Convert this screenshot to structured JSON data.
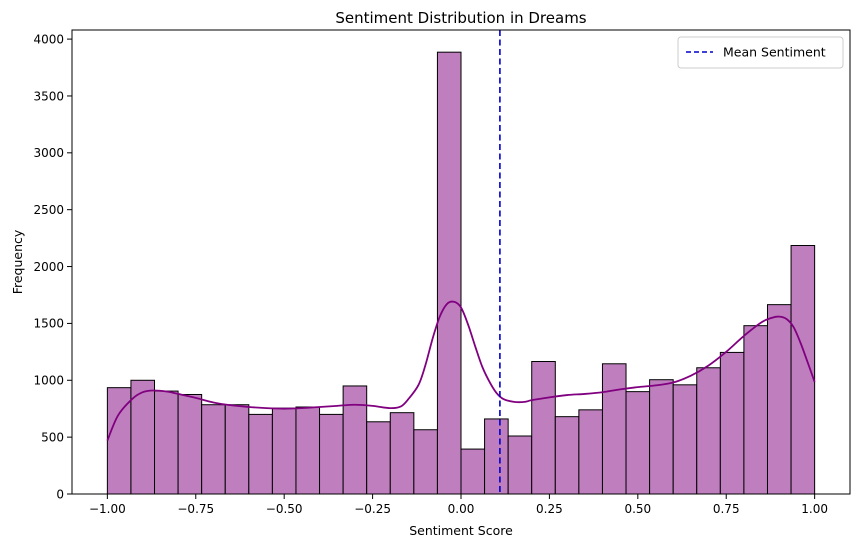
{
  "chart_data": {
    "type": "bar",
    "title": "Sentiment Distribution in Dreams",
    "xlabel": "Sentiment Score",
    "ylabel": "Frequency",
    "xlim": [
      -1.1,
      1.1
    ],
    "ylim": [
      0,
      4080
    ],
    "xticks": [
      -1.0,
      -0.75,
      -0.5,
      -0.25,
      0.0,
      0.25,
      0.5,
      0.75,
      1.0
    ],
    "xtick_labels": [
      "−1.00",
      "−0.75",
      "−0.50",
      "−0.25",
      "0.00",
      "0.25",
      "0.50",
      "0.75",
      "1.00"
    ],
    "yticks": [
      0,
      500,
      1000,
      1500,
      2000,
      2500,
      3000,
      3500,
      4000
    ],
    "ytick_labels": [
      "0",
      "500",
      "1000",
      "1500",
      "2000",
      "2500",
      "3000",
      "3500",
      "4000"
    ],
    "bin_start": -1.0,
    "bin_end": 1.0,
    "values": [
      935,
      1000,
      905,
      875,
      785,
      785,
      700,
      755,
      765,
      700,
      950,
      635,
      715,
      565,
      3885,
      395,
      660,
      510,
      1165,
      680,
      740,
      1145,
      900,
      1005,
      960,
      1110,
      1245,
      1480,
      1665,
      2185
    ],
    "bar_color": "#bf7fbf",
    "bar_edge_color": "#000000",
    "kde": {
      "color": "#800080",
      "x": [
        -1.0,
        -0.97,
        -0.93,
        -0.9,
        -0.87,
        -0.83,
        -0.8,
        -0.75,
        -0.7,
        -0.65,
        -0.6,
        -0.55,
        -0.5,
        -0.45,
        -0.4,
        -0.35,
        -0.3,
        -0.25,
        -0.2,
        -0.17,
        -0.15,
        -0.12,
        -0.1,
        -0.08,
        -0.06,
        -0.04,
        -0.02,
        0.0,
        0.02,
        0.04,
        0.06,
        0.08,
        0.1,
        0.12,
        0.15,
        0.18,
        0.2,
        0.25,
        0.3,
        0.35,
        0.4,
        0.45,
        0.5,
        0.55,
        0.6,
        0.65,
        0.7,
        0.75,
        0.8,
        0.85,
        0.88,
        0.9,
        0.92,
        0.94,
        0.96,
        0.98,
        1.0
      ],
      "y": [
        470,
        690,
        835,
        895,
        910,
        900,
        880,
        845,
        805,
        780,
        765,
        755,
        750,
        755,
        765,
        775,
        785,
        775,
        755,
        770,
        830,
        960,
        1140,
        1370,
        1560,
        1670,
        1690,
        1640,
        1490,
        1300,
        1120,
        990,
        890,
        835,
        810,
        810,
        825,
        850,
        870,
        880,
        895,
        920,
        940,
        955,
        980,
        1040,
        1130,
        1250,
        1390,
        1510,
        1550,
        1560,
        1540,
        1470,
        1330,
        1160,
        985
      ]
    },
    "mean_line": {
      "x": 0.11,
      "color": "#0000cc",
      "style": "dashed",
      "label": "Mean Sentiment"
    },
    "legend": {
      "placement": "top-right",
      "entries": [
        "Mean Sentiment"
      ]
    },
    "grid": false
  }
}
